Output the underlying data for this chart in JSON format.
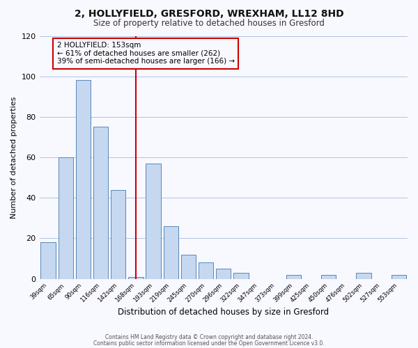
{
  "title": "2, HOLLYFIELD, GRESFORD, WREXHAM, LL12 8HD",
  "subtitle": "Size of property relative to detached houses in Gresford",
  "xlabel": "Distribution of detached houses by size in Gresford",
  "ylabel": "Number of detached properties",
  "bar_color": "#c5d8f0",
  "bar_edge_color": "#5588bb",
  "bins": [
    "39sqm",
    "65sqm",
    "90sqm",
    "116sqm",
    "142sqm",
    "168sqm",
    "193sqm",
    "219sqm",
    "245sqm",
    "270sqm",
    "296sqm",
    "322sqm",
    "347sqm",
    "373sqm",
    "399sqm",
    "425sqm",
    "450sqm",
    "476sqm",
    "502sqm",
    "527sqm",
    "553sqm"
  ],
  "values": [
    18,
    60,
    98,
    75,
    44,
    1,
    57,
    26,
    12,
    8,
    5,
    3,
    0,
    0,
    2,
    0,
    2,
    0,
    3,
    0,
    2
  ],
  "ylim": [
    0,
    120
  ],
  "yticks": [
    0,
    20,
    40,
    60,
    80,
    100,
    120
  ],
  "vline_index": 5,
  "vline_color": "#cc0000",
  "annotation_text": "2 HOLLYFIELD: 153sqm\n← 61% of detached houses are smaller (262)\n39% of semi-detached houses are larger (166) →",
  "annotation_box_color": "#cc0000",
  "footer_line1": "Contains HM Land Registry data © Crown copyright and database right 2024.",
  "footer_line2": "Contains public sector information licensed under the Open Government Licence v3.0.",
  "background_color": "#f8f8ff",
  "grid_color": "#b0c4de"
}
